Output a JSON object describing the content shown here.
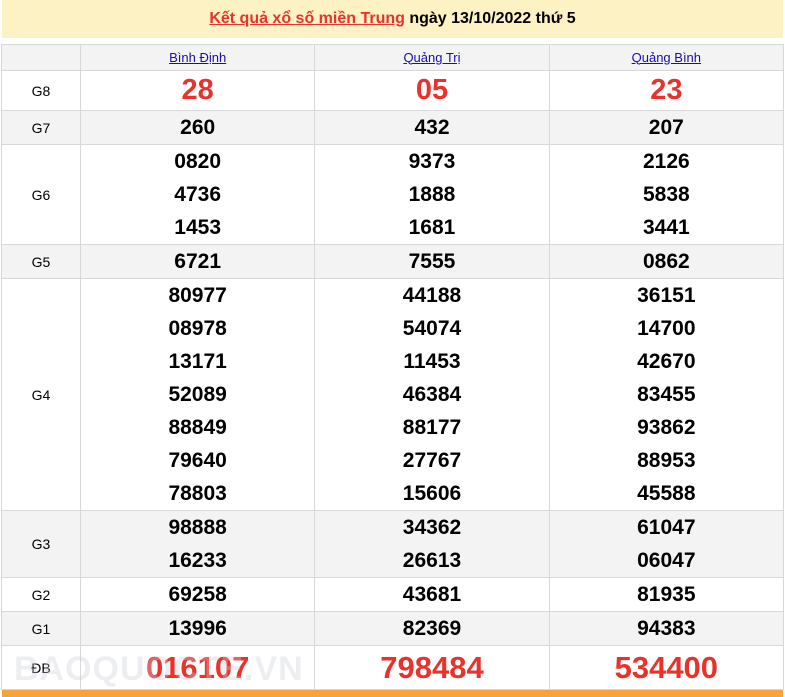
{
  "header": {
    "link_text": "Kết quả xổ số miền Trung",
    "date_text": " ngày 13/10/2022 thứ 5"
  },
  "provinces": [
    "Bình Định",
    "Quảng Trị",
    "Quảng Bình"
  ],
  "rows": [
    {
      "label": "G8",
      "style": "red",
      "alt": false,
      "values": [
        [
          "28"
        ],
        [
          "05"
        ],
        [
          "23"
        ]
      ]
    },
    {
      "label": "G7",
      "style": "num",
      "alt": true,
      "values": [
        [
          "260"
        ],
        [
          "432"
        ],
        [
          "207"
        ]
      ]
    },
    {
      "label": "G6",
      "style": "num",
      "alt": false,
      "values": [
        [
          "0820",
          "4736",
          "1453"
        ],
        [
          "9373",
          "1888",
          "1681"
        ],
        [
          "2126",
          "5838",
          "3441"
        ]
      ]
    },
    {
      "label": "G5",
      "style": "num",
      "alt": true,
      "values": [
        [
          "6721"
        ],
        [
          "7555"
        ],
        [
          "0862"
        ]
      ]
    },
    {
      "label": "G4",
      "style": "num",
      "alt": false,
      "values": [
        [
          "80977",
          "08978",
          "13171",
          "52089",
          "88849",
          "79640",
          "78803"
        ],
        [
          "44188",
          "54074",
          "11453",
          "46384",
          "88177",
          "27767",
          "15606"
        ],
        [
          "36151",
          "14700",
          "42670",
          "83455",
          "93862",
          "88953",
          "45588"
        ]
      ]
    },
    {
      "label": "G3",
      "style": "num",
      "alt": true,
      "values": [
        [
          "98888",
          "16233"
        ],
        [
          "34362",
          "26613"
        ],
        [
          "61047",
          "06047"
        ]
      ]
    },
    {
      "label": "G2",
      "style": "num",
      "alt": false,
      "values": [
        [
          "69258"
        ],
        [
          "43681"
        ],
        [
          "81935"
        ]
      ]
    },
    {
      "label": "G1",
      "style": "num",
      "alt": true,
      "values": [
        [
          "13996"
        ],
        [
          "82369"
        ],
        [
          "94383"
        ]
      ]
    },
    {
      "label": "ĐB",
      "style": "db",
      "alt": false,
      "values": [
        [
          "016107"
        ],
        [
          "798484"
        ],
        [
          "534400"
        ]
      ]
    }
  ],
  "watermark": "BAOQUOCTE.VN",
  "colors": {
    "accent_red": "#e8322b",
    "header_bg": "#fdf2c3",
    "bottom_bar": "#f6a33a"
  }
}
